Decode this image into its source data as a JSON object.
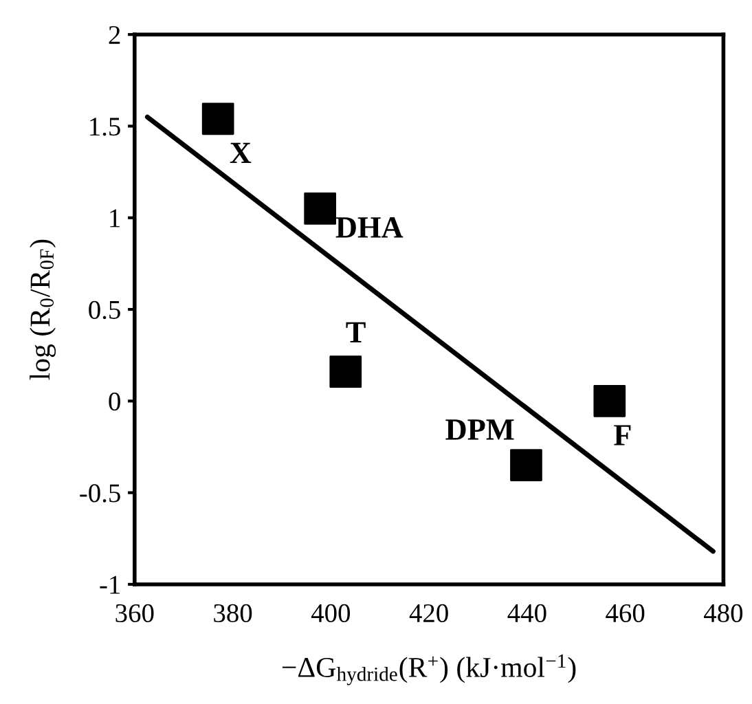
{
  "chart_data": {
    "type": "scatter",
    "xlabel": "−ΔG$_{hydride}$(R$^{+}$) (kJ·mol$^{−1}$)",
    "ylabel": "log (R$_{0}$/R$_{0F}$)",
    "x": [
      377,
      397.8,
      403,
      439.8,
      456.8
    ],
    "series": [
      {
        "color": "#000000",
        "marker": "square",
        "values": [
          1.54,
          1.05,
          0.16,
          -0.35,
          0.0
        ]
      },
      {
        "type": "line",
        "color": "#000000",
        "line_style": "solid",
        "marker": "none",
        "x": [
          362.6,
          477.9
        ],
        "values": [
          1.55,
          -0.82
        ]
      }
    ],
    "annotations": [
      {
        "text": "X",
        "x": 377,
        "y": 1.54
      },
      {
        "text": "DHA",
        "x": 397.8,
        "y": 1.05
      },
      {
        "text": "T",
        "x": 403,
        "y": 0.16
      },
      {
        "text": "DPM",
        "x": 439.8,
        "y": -0.35
      },
      {
        "text": "F",
        "x": 456.8,
        "y": 0.0
      }
    ],
    "xlim": [
      360,
      480
    ],
    "xticks": [
      360,
      380,
      400,
      420,
      440,
      460,
      480
    ],
    "ylim": [
      -1,
      2
    ],
    "yticks": [
      -1,
      -0.5,
      0,
      0.5,
      1,
      1.5,
      2
    ],
    "grid": false,
    "legend": false
  }
}
